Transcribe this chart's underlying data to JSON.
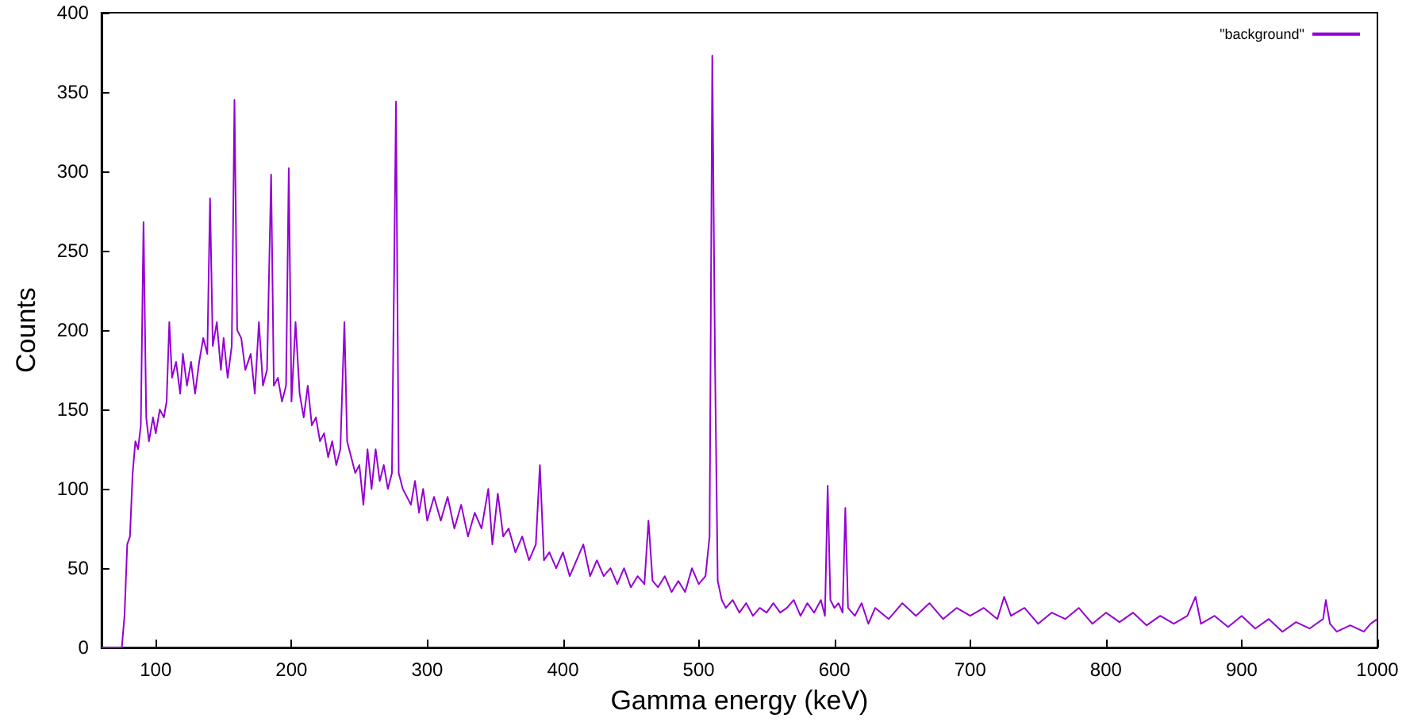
{
  "chart_data": {
    "type": "line",
    "xlabel": "Gamma energy (keV)",
    "ylabel": "Counts",
    "x": [
      60,
      75,
      77,
      79,
      81,
      83,
      85,
      87,
      89,
      91,
      93,
      95,
      98,
      100,
      103,
      106,
      108,
      110,
      112,
      115,
      118,
      120,
      123,
      126,
      129,
      132,
      135,
      138,
      140,
      142,
      145,
      148,
      150,
      153,
      156,
      158,
      160,
      163,
      166,
      170,
      173,
      176,
      179,
      182,
      185,
      187,
      190,
      193,
      196,
      198,
      200,
      203,
      206,
      209,
      212,
      215,
      218,
      221,
      224,
      227,
      230,
      233,
      236,
      239,
      241,
      244,
      247,
      250,
      253,
      256,
      259,
      262,
      265,
      268,
      271,
      274,
      277,
      279,
      282,
      285,
      288,
      291,
      294,
      297,
      300,
      305,
      310,
      315,
      320,
      325,
      330,
      335,
      340,
      345,
      348,
      352,
      356,
      360,
      365,
      370,
      375,
      380,
      383,
      386,
      390,
      395,
      400,
      405,
      410,
      415,
      420,
      425,
      430,
      435,
      440,
      445,
      450,
      455,
      460,
      463,
      466,
      470,
      475,
      480,
      485,
      490,
      495,
      500,
      505,
      508,
      510,
      512,
      514,
      517,
      520,
      525,
      530,
      535,
      540,
      545,
      550,
      555,
      560,
      565,
      570,
      575,
      580,
      585,
      590,
      593,
      595,
      597,
      600,
      603,
      606,
      608,
      610,
      615,
      620,
      625,
      630,
      640,
      650,
      660,
      670,
      680,
      690,
      700,
      710,
      720,
      725,
      730,
      740,
      750,
      760,
      770,
      780,
      790,
      800,
      810,
      820,
      830,
      840,
      850,
      860,
      866,
      870,
      880,
      890,
      900,
      910,
      920,
      930,
      940,
      950,
      960,
      962,
      965,
      970,
      980,
      990,
      995,
      1000
    ],
    "series": [
      {
        "name": "\"background\"",
        "color": "#9400d3",
        "values": [
          0,
          0,
          20,
          65,
          70,
          110,
          130,
          125,
          140,
          268,
          145,
          130,
          145,
          135,
          150,
          145,
          155,
          205,
          170,
          180,
          160,
          185,
          165,
          180,
          160,
          180,
          195,
          185,
          283,
          190,
          205,
          175,
          195,
          170,
          190,
          345,
          200,
          195,
          175,
          185,
          160,
          205,
          165,
          175,
          298,
          165,
          170,
          155,
          165,
          302,
          155,
          205,
          160,
          145,
          165,
          140,
          145,
          130,
          135,
          120,
          130,
          115,
          125,
          205,
          130,
          120,
          110,
          115,
          90,
          125,
          100,
          125,
          105,
          115,
          100,
          110,
          344,
          110,
          100,
          95,
          90,
          105,
          85,
          100,
          80,
          95,
          80,
          95,
          75,
          90,
          70,
          85,
          75,
          100,
          65,
          97,
          70,
          75,
          60,
          70,
          55,
          65,
          115,
          55,
          60,
          50,
          60,
          45,
          55,
          65,
          45,
          55,
          45,
          50,
          40,
          50,
          38,
          45,
          40,
          80,
          42,
          38,
          45,
          35,
          42,
          35,
          50,
          40,
          45,
          70,
          373,
          180,
          42,
          30,
          25,
          30,
          22,
          28,
          20,
          25,
          22,
          28,
          22,
          25,
          30,
          20,
          28,
          22,
          30,
          20,
          102,
          30,
          25,
          28,
          22,
          88,
          25,
          20,
          28,
          15,
          25,
          18,
          28,
          20,
          28,
          18,
          25,
          20,
          25,
          18,
          32,
          20,
          25,
          15,
          22,
          18,
          25,
          15,
          22,
          16,
          22,
          14,
          20,
          15,
          20,
          32,
          15,
          20,
          13,
          20,
          12,
          18,
          10,
          16,
          12,
          18,
          30,
          15,
          10,
          14,
          10,
          15,
          18
        ]
      }
    ],
    "xlim": [
      60,
      1000
    ],
    "ylim": [
      0,
      400
    ],
    "xticks": [
      100,
      200,
      300,
      400,
      500,
      600,
      700,
      800,
      900,
      1000
    ],
    "yticks": [
      0,
      50,
      100,
      150,
      200,
      250,
      300,
      350,
      400
    ],
    "legend": "top right",
    "marker": "none",
    "line_style": "solid"
  }
}
